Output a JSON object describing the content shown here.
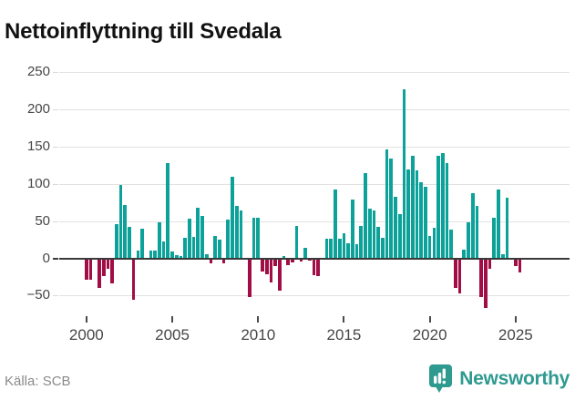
{
  "title": "Nettoinflyttning till Svedala",
  "footer": {
    "source": "Källa: SCB",
    "brand": "Newsworthy"
  },
  "colors": {
    "positive_bar": "#0da299",
    "negative_bar": "#a10d45",
    "grid": "#e2e2e2",
    "zero_line": "#3a3a3a",
    "axis_text": "#474747",
    "title_text": "#121212",
    "source_text": "#8a8a8a",
    "brand_teal": "#2f9a90"
  },
  "chart_data": {
    "type": "bar",
    "title": "Nettoinflyttning till Svedala",
    "period": "quarterly",
    "start": "2000 Q1",
    "end": "2025 Q2",
    "ylabel": "",
    "xlabel": "",
    "ylim": [
      -75,
      262
    ],
    "grid": true,
    "legend": "none",
    "y_ticks": [
      250,
      200,
      150,
      100,
      50,
      0,
      -50
    ],
    "x_ticks": [
      "2000",
      "2005",
      "2010",
      "2015",
      "2020",
      "2025"
    ],
    "x_tick_indices": [
      0,
      20,
      40,
      60,
      80,
      100
    ],
    "values": [
      -28,
      -28,
      0,
      -38,
      -23,
      -13,
      -33,
      46,
      99,
      72,
      42,
      -55,
      10,
      40,
      0,
      11,
      11,
      48,
      23,
      128,
      9,
      4,
      3,
      27,
      53,
      29,
      68,
      57,
      6,
      -6,
      30,
      25,
      -5,
      52,
      110,
      71,
      64,
      0,
      -51,
      55,
      55,
      -16,
      -20,
      -31,
      -9,
      -42,
      3,
      -8,
      -4,
      43,
      -3,
      14,
      -2,
      -22,
      -23,
      0,
      26,
      26,
      93,
      26,
      34,
      20,
      79,
      19,
      43,
      115,
      67,
      64,
      42,
      27,
      147,
      134,
      83,
      60,
      227,
      120,
      138,
      118,
      102,
      96,
      30,
      41,
      138,
      141,
      128,
      38,
      -39,
      -46,
      12,
      48,
      87,
      71,
      -51,
      -66,
      -13,
      55,
      92,
      5,
      82,
      0,
      -9,
      -18
    ]
  }
}
